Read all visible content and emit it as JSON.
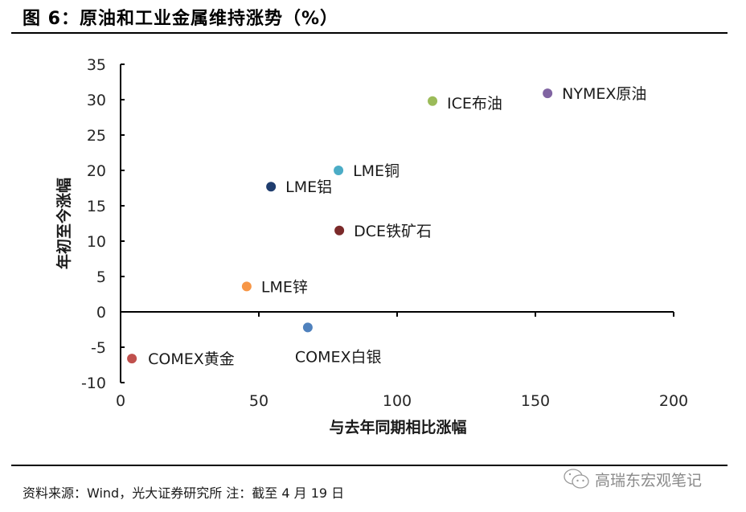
{
  "header": {
    "title": "图 6：原油和工业金属维持涨势（%）"
  },
  "footer": {
    "source": "资料来源：Wind，光大证券研究所 注：截至 4 月 19 日",
    "watermark": "高瑞东宏观笔记",
    "watermark_icon": "wechat-icon"
  },
  "chart_data": {
    "type": "scatter",
    "title": "原油和工业金属维持涨势（%）",
    "xlabel": "与去年同期相比涨幅",
    "ylabel": "年初至今涨幅",
    "xlim": [
      0,
      200
    ],
    "ylim": [
      -10,
      35
    ],
    "xticks": [
      0,
      50,
      100,
      150,
      200
    ],
    "yticks": [
      -10,
      -5,
      0,
      5,
      10,
      15,
      20,
      25,
      30,
      35
    ],
    "grid": false,
    "legend": "none (points labeled directly)",
    "points": [
      {
        "label": "NYMEX原油",
        "x": 154.4,
        "y": 30.9,
        "color": "#8064a2"
      },
      {
        "label": "ICE布油",
        "x": 112.8,
        "y": 29.8,
        "color": "#9bbb59"
      },
      {
        "label": "LME铜",
        "x": 78.8,
        "y": 20.0,
        "color": "#4bacc6"
      },
      {
        "label": "LME铝",
        "x": 54.4,
        "y": 17.7,
        "color": "#1f3d6e"
      },
      {
        "label": "DCE铁矿石",
        "x": 79.1,
        "y": 11.5,
        "color": "#7b2a2a"
      },
      {
        "label": "LME锌",
        "x": 45.6,
        "y": 3.6,
        "color": "#f79646"
      },
      {
        "label": "COMEX白银",
        "x": 67.7,
        "y": -2.2,
        "color": "#4f81bd"
      },
      {
        "label": "COMEX黄金",
        "x": 4.1,
        "y": -6.6,
        "color": "#c0504d"
      }
    ],
    "label_offsets": {
      "NYMEX原油": [
        18,
        0
      ],
      "ICE布油": [
        18,
        2
      ],
      "LME铜": [
        18,
        0
      ],
      "LME铝": [
        18,
        0
      ],
      "DCE铁矿石": [
        18,
        0
      ],
      "LME锌": [
        18,
        0
      ],
      "COMEX白银": [
        -16,
        36
      ],
      "COMEX黄金": [
        20,
        0
      ]
    }
  }
}
